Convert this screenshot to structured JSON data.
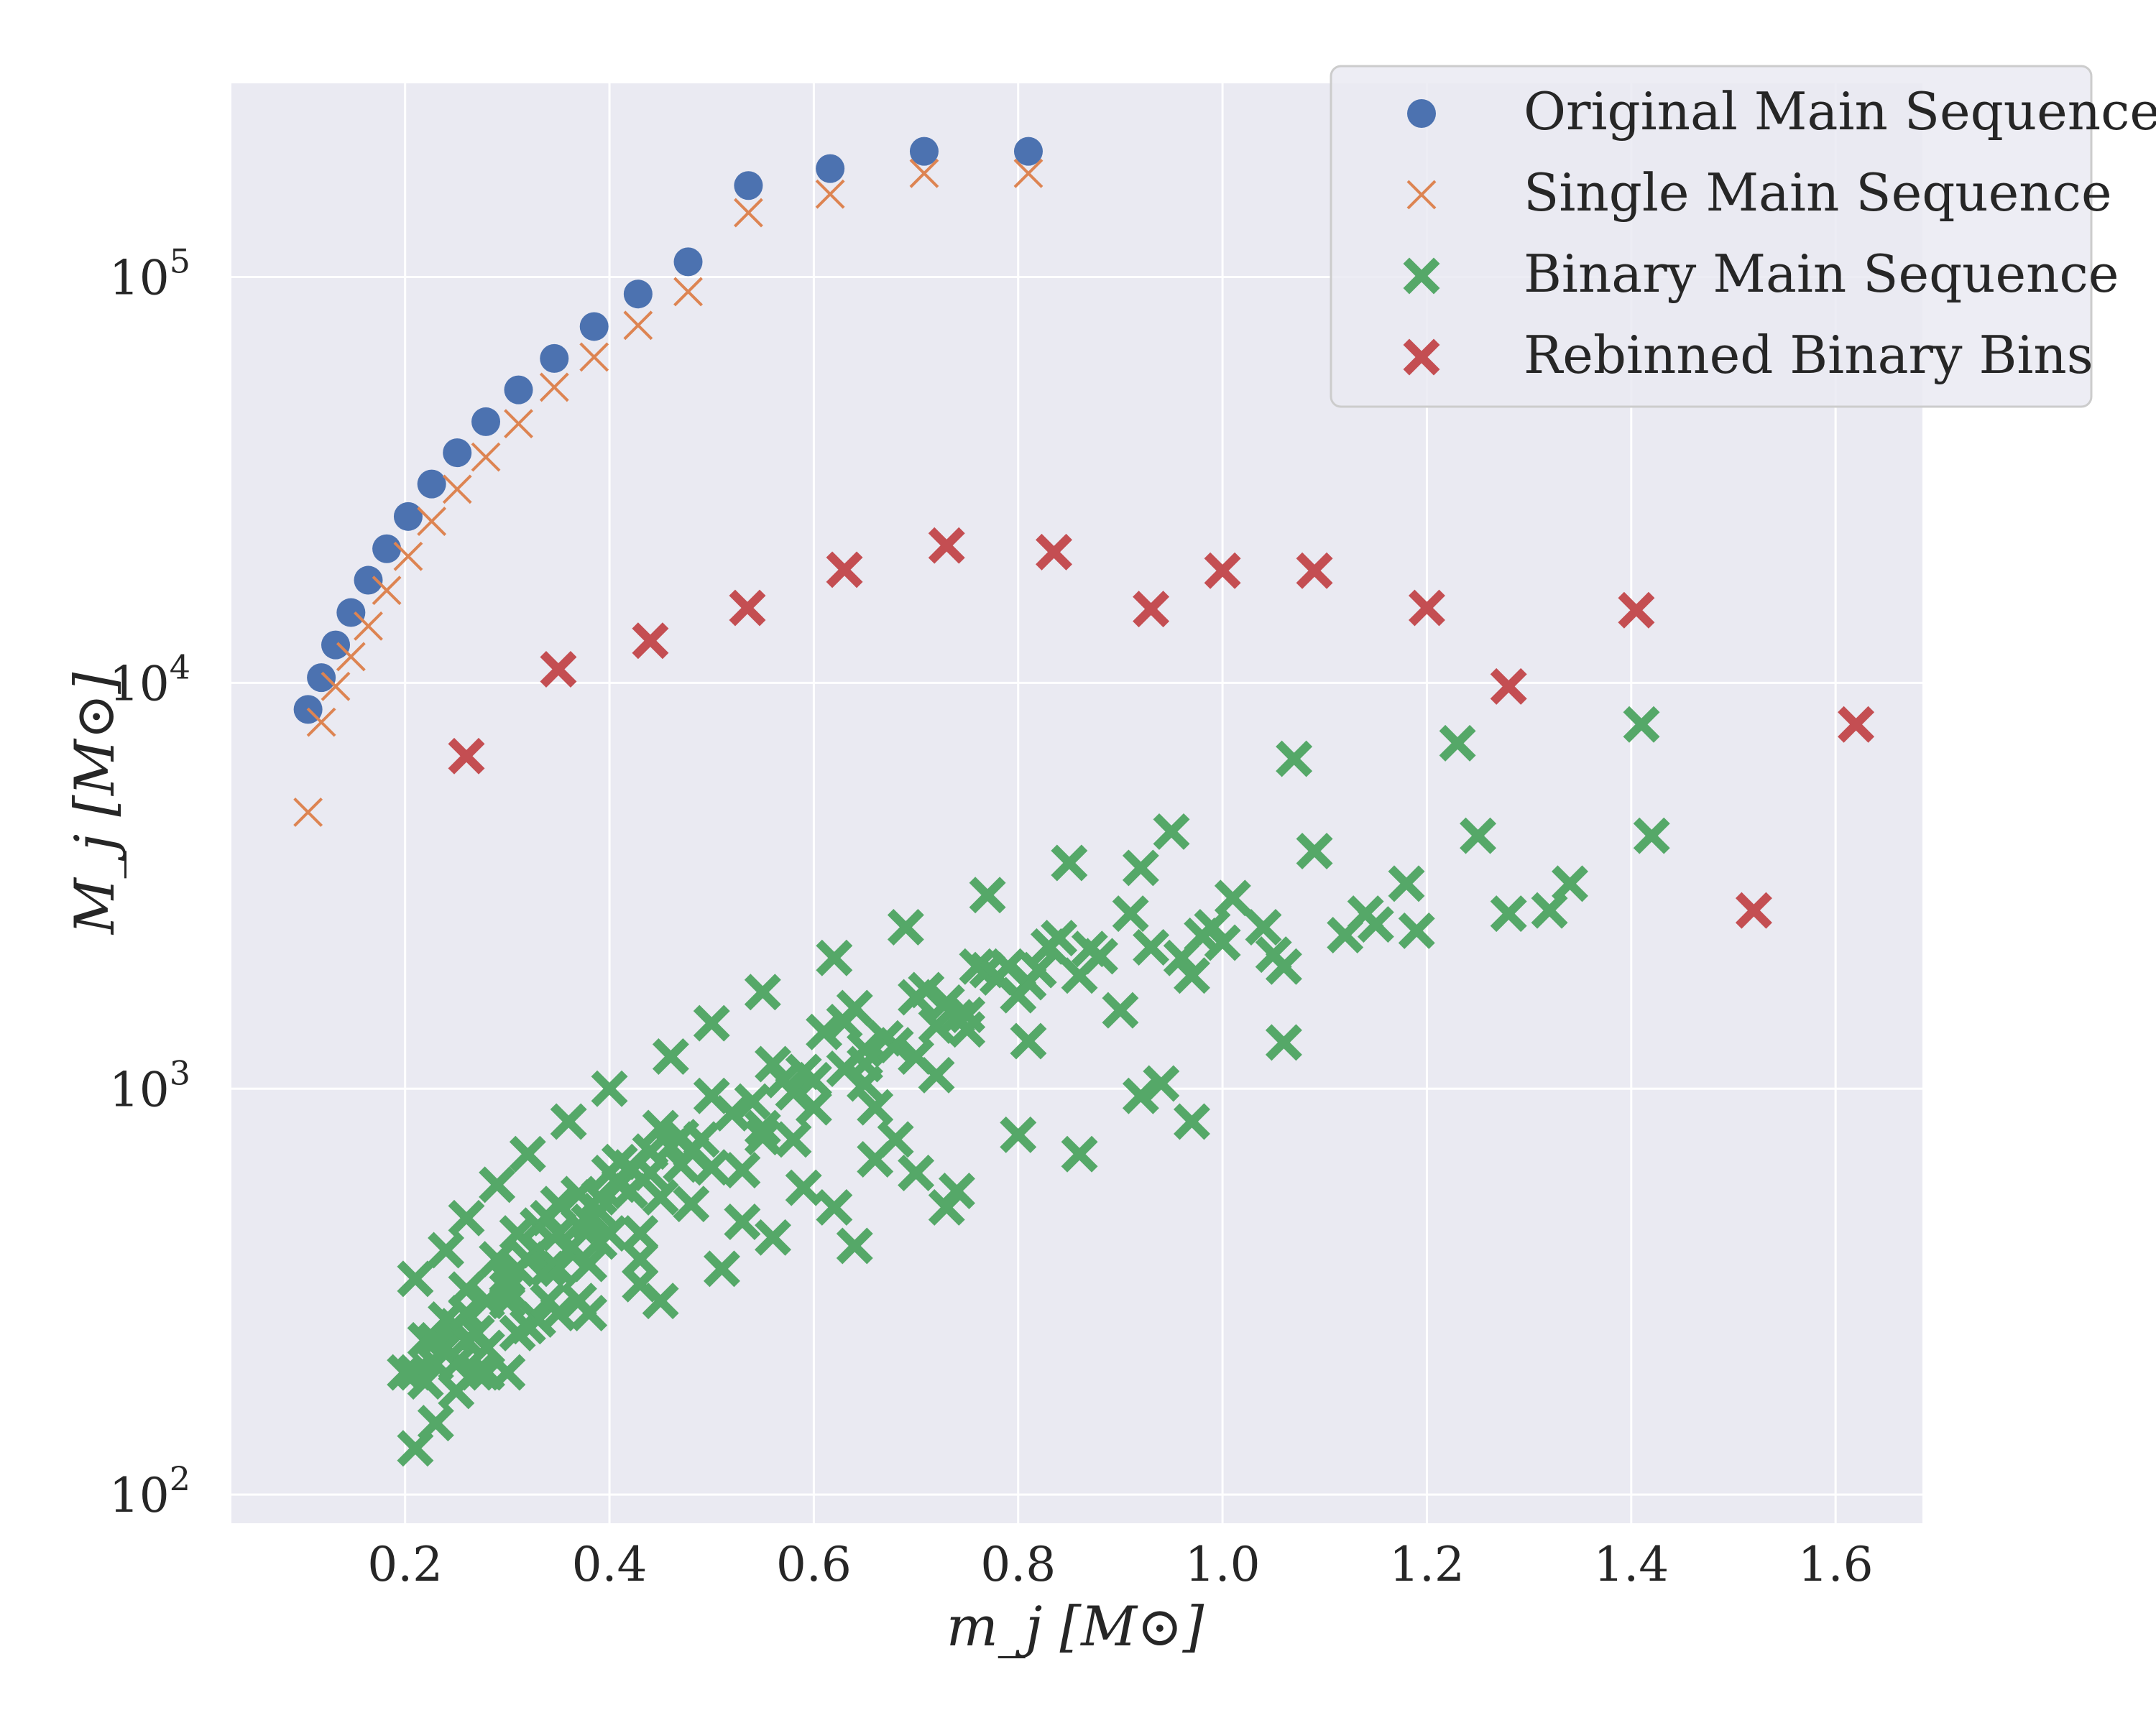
{
  "chart_data": {
    "type": "scatter",
    "title": "",
    "xlabel": "m_j [M⊙]",
    "ylabel": "M_j [M⊙]",
    "xlim": [
      0.03,
      1.685
    ],
    "ylim": [
      85,
      300000
    ],
    "y_scale": "log",
    "x_ticks": [
      0.2,
      0.4,
      0.6,
      0.8,
      1.0,
      1.2,
      1.4,
      1.6
    ],
    "x_tick_labels": [
      "0.2",
      "0.4",
      "0.6",
      "0.8",
      "1.0",
      "1.2",
      "1.4",
      "1.6"
    ],
    "y_ticks": [
      100,
      1000,
      10000,
      100000
    ],
    "y_tick_labels": [
      "10",
      "10",
      "10",
      "10"
    ],
    "y_tick_exponents": [
      "2",
      "3",
      "4",
      "5"
    ],
    "grid": true,
    "legend_position": "top-right",
    "series": [
      {
        "name": "Original Main Sequence",
        "color": "#4c72b0",
        "marker": "circle",
        "x": [
          0.105,
          0.118,
          0.132,
          0.147,
          0.164,
          0.182,
          0.203,
          0.226,
          0.251,
          0.279,
          0.311,
          0.346,
          0.385,
          0.428,
          0.477,
          0.536,
          0.616,
          0.708,
          0.81
        ],
        "y": [
          8600,
          10300,
          12400,
          14900,
          17900,
          21400,
          25700,
          30900,
          36900,
          44000,
          52700,
          63000,
          75500,
          90800,
          109000,
          168000,
          185000,
          204000,
          204000
        ]
      },
      {
        "name": "Single Main Sequence",
        "color": "#dd8452",
        "marker": "x-thin",
        "x": [
          0.105,
          0.118,
          0.132,
          0.147,
          0.164,
          0.182,
          0.203,
          0.226,
          0.251,
          0.279,
          0.311,
          0.346,
          0.385,
          0.428,
          0.477,
          0.536,
          0.616,
          0.708,
          0.81
        ],
        "y": [
          4800,
          8000,
          9800,
          11600,
          13800,
          16900,
          20500,
          25000,
          30000,
          36000,
          43500,
          53500,
          63500,
          76000,
          92000,
          144000,
          160000,
          180000,
          180000
        ]
      },
      {
        "name": "Binary Main Sequence",
        "color": "#55a868",
        "marker": "x-thick",
        "x": [
          0.21,
          0.21,
          0.21,
          0.22,
          0.22,
          0.23,
          0.23,
          0.24,
          0.24,
          0.24,
          0.25,
          0.25,
          0.25,
          0.26,
          0.26,
          0.26,
          0.27,
          0.27,
          0.28,
          0.28,
          0.28,
          0.29,
          0.29,
          0.3,
          0.3,
          0.3,
          0.31,
          0.31,
          0.31,
          0.32,
          0.32,
          0.32,
          0.33,
          0.33,
          0.33,
          0.34,
          0.34,
          0.34,
          0.35,
          0.35,
          0.35,
          0.36,
          0.36,
          0.37,
          0.37,
          0.37,
          0.38,
          0.38,
          0.38,
          0.39,
          0.39,
          0.39,
          0.4,
          0.4,
          0.41,
          0.41,
          0.42,
          0.42,
          0.43,
          0.43,
          0.43,
          0.44,
          0.44,
          0.45,
          0.45,
          0.46,
          0.46,
          0.47,
          0.47,
          0.48,
          0.48,
          0.49,
          0.5,
          0.5,
          0.51,
          0.52,
          0.53,
          0.53,
          0.54,
          0.55,
          0.55,
          0.56,
          0.56,
          0.57,
          0.58,
          0.58,
          0.59,
          0.59,
          0.6,
          0.61,
          0.62,
          0.62,
          0.63,
          0.63,
          0.64,
          0.64,
          0.65,
          0.65,
          0.66,
          0.66,
          0.67,
          0.68,
          0.68,
          0.69,
          0.7,
          0.7,
          0.71,
          0.72,
          0.72,
          0.73,
          0.73,
          0.74,
          0.74,
          0.75,
          0.76,
          0.77,
          0.77,
          0.78,
          0.79,
          0.8,
          0.81,
          0.81,
          0.82,
          0.83,
          0.84,
          0.85,
          0.86,
          0.87,
          0.88,
          0.9,
          0.91,
          0.92,
          0.93,
          0.94,
          0.95,
          0.96,
          0.97,
          0.98,
          0.99,
          1.0,
          1.01,
          1.04,
          1.05,
          1.06,
          1.07,
          1.09,
          1.12,
          1.14,
          1.15,
          1.18,
          1.19,
          1.23,
          1.25,
          1.28,
          1.32,
          1.34,
          1.41,
          1.42,
          0.2,
          0.23,
          0.26,
          0.3,
          0.35,
          0.4,
          0.45,
          0.5,
          0.55,
          0.6,
          0.65,
          0.7,
          0.75,
          0.8,
          0.86,
          0.92,
          0.97,
          1.06
        ],
        "y": [
          130,
          200,
          340,
          190,
          240,
          150,
          210,
          270,
          400,
          230,
          180,
          260,
          210,
          320,
          480,
          240,
          200,
          250,
          300,
          230,
          200,
          580,
          380,
          300,
          200,
          340,
          360,
          250,
          440,
          690,
          380,
          260,
          460,
          400,
          270,
          300,
          360,
          480,
          520,
          440,
          280,
          400,
          830,
          550,
          460,
          300,
          470,
          370,
          280,
          540,
          420,
          500,
          1000,
          620,
          580,
          660,
          560,
          640,
          440,
          380,
          330,
          620,
          700,
          300,
          800,
          1200,
          720,
          650,
          760,
          700,
          520,
          750,
          1450,
          960,
          360,
          870,
          630,
          470,
          930,
          800,
          1730,
          430,
          1150,
          1050,
          980,
          750,
          570,
          1100,
          1050,
          1380,
          2100,
          510,
          1120,
          1460,
          410,
          1580,
          1250,
          1150,
          900,
          670,
          1330,
          750,
          1280,
          2500,
          1680,
          620,
          1750,
          1430,
          1080,
          1630,
          510,
          1500,
          560,
          1520,
          2000,
          1960,
          3000,
          1880,
          2000,
          770,
          1310,
          1830,
          1960,
          2240,
          2350,
          3600,
          690,
          2210,
          2120,
          1560,
          2700,
          960,
          2230,
          1030,
          4300,
          2100,
          830,
          2380,
          2500,
          2290,
          2950,
          2500,
          2140,
          1300,
          6500,
          3850,
          2390,
          2700,
          2540,
          3200,
          2450,
          7100,
          4200,
          2700,
          2750,
          3200,
          7900,
          4200,
          200,
          240,
          280,
          320,
          360,
          440,
          540,
          640,
          760,
          900,
          1030,
          1200,
          1400,
          1700,
          1900,
          3500,
          1900,
          2000
        ]
      },
      {
        "name": "Rebinned Binary Bins",
        "color": "#c44e52",
        "marker": "x-thick",
        "x": [
          0.26,
          0.35,
          0.44,
          0.535,
          0.63,
          0.73,
          0.835,
          0.93,
          1.0,
          1.09,
          1.2,
          1.28,
          1.405,
          1.52,
          1.62
        ],
        "y": [
          6600,
          10800,
          12700,
          15300,
          19000,
          21800,
          21000,
          15200,
          18900,
          18900,
          15300,
          9800,
          15100,
          2750,
          7900
        ]
      }
    ]
  }
}
